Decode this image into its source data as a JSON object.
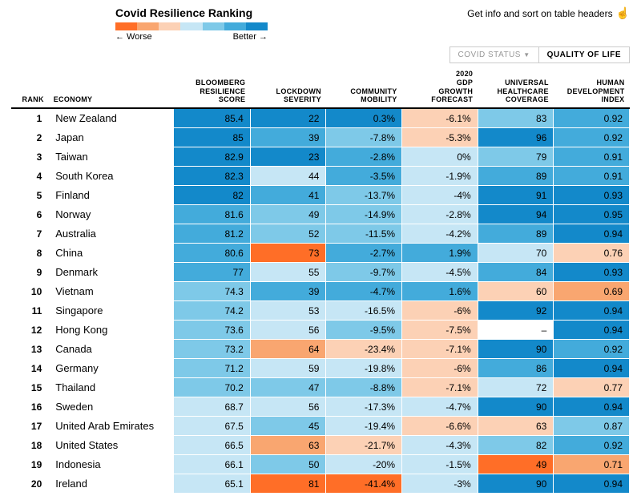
{
  "legend": {
    "title": "Covid Resilience Ranking",
    "worse": "← Worse",
    "better": "Better →",
    "colors": [
      "#ff6e27",
      "#f9a670",
      "#fcd1b5",
      "#c6e6f5",
      "#7ec9e8",
      "#43abdb",
      "#1389ca"
    ]
  },
  "infoText": "Get info and sort on table headers",
  "tabs": {
    "covid": "COVID STATUS",
    "quality": "QUALITY OF LIFE"
  },
  "columns": [
    {
      "key": "rank",
      "label": "RANK",
      "cls": "rank"
    },
    {
      "key": "economy",
      "label": "ECONOMY",
      "cls": "economy"
    },
    {
      "key": "score",
      "label": "BLOOMBERG RESILIENCE SCORE",
      "cls": "score"
    },
    {
      "key": "lockdown",
      "label": "LOCKDOWN SEVERITY",
      "cls": "metric"
    },
    {
      "key": "mobility",
      "label": "COMMUNITY MOBILITY",
      "cls": "metric"
    },
    {
      "key": "gdp",
      "label": "2020 GDP GROWTH FORECAST",
      "cls": "metric"
    },
    {
      "key": "health",
      "label": "UNIVERSAL HEALTHCARE COVERAGE",
      "cls": "metric"
    },
    {
      "key": "hdi",
      "label": "HUMAN DEVELOPMENT INDEX",
      "cls": "metric"
    }
  ],
  "rows": [
    {
      "rank": "1",
      "economy": "New Zealand",
      "score": {
        "v": "85.4",
        "c": "#1389ca"
      },
      "lockdown": {
        "v": "22",
        "c": "#1389ca"
      },
      "mobility": {
        "v": "0.3%",
        "c": "#1389ca"
      },
      "gdp": {
        "v": "-6.1%",
        "c": "#fcd1b5"
      },
      "health": {
        "v": "83",
        "c": "#7ec9e8"
      },
      "hdi": {
        "v": "0.92",
        "c": "#43abdb"
      }
    },
    {
      "rank": "2",
      "economy": "Japan",
      "score": {
        "v": "85",
        "c": "#1389ca"
      },
      "lockdown": {
        "v": "39",
        "c": "#43abdb"
      },
      "mobility": {
        "v": "-7.8%",
        "c": "#7ec9e8"
      },
      "gdp": {
        "v": "-5.3%",
        "c": "#fcd1b5"
      },
      "health": {
        "v": "96",
        "c": "#1389ca"
      },
      "hdi": {
        "v": "0.92",
        "c": "#43abdb"
      }
    },
    {
      "rank": "3",
      "economy": "Taiwan",
      "score": {
        "v": "82.9",
        "c": "#1389ca"
      },
      "lockdown": {
        "v": "23",
        "c": "#1389ca"
      },
      "mobility": {
        "v": "-2.8%",
        "c": "#43abdb"
      },
      "gdp": {
        "v": "0%",
        "c": "#c6e6f5"
      },
      "health": {
        "v": "79",
        "c": "#7ec9e8"
      },
      "hdi": {
        "v": "0.91",
        "c": "#43abdb"
      }
    },
    {
      "rank": "4",
      "economy": "South Korea",
      "score": {
        "v": "82.3",
        "c": "#1389ca"
      },
      "lockdown": {
        "v": "44",
        "c": "#c6e6f5"
      },
      "mobility": {
        "v": "-3.5%",
        "c": "#43abdb"
      },
      "gdp": {
        "v": "-1.9%",
        "c": "#c6e6f5"
      },
      "health": {
        "v": "89",
        "c": "#43abdb"
      },
      "hdi": {
        "v": "0.91",
        "c": "#43abdb"
      }
    },
    {
      "rank": "5",
      "economy": "Finland",
      "score": {
        "v": "82",
        "c": "#1389ca"
      },
      "lockdown": {
        "v": "41",
        "c": "#43abdb"
      },
      "mobility": {
        "v": "-13.7%",
        "c": "#7ec9e8"
      },
      "gdp": {
        "v": "-4%",
        "c": "#c6e6f5"
      },
      "health": {
        "v": "91",
        "c": "#1389ca"
      },
      "hdi": {
        "v": "0.93",
        "c": "#1389ca"
      }
    },
    {
      "rank": "6",
      "economy": "Norway",
      "score": {
        "v": "81.6",
        "c": "#43abdb"
      },
      "lockdown": {
        "v": "49",
        "c": "#7ec9e8"
      },
      "mobility": {
        "v": "-14.9%",
        "c": "#7ec9e8"
      },
      "gdp": {
        "v": "-2.8%",
        "c": "#c6e6f5"
      },
      "health": {
        "v": "94",
        "c": "#1389ca"
      },
      "hdi": {
        "v": "0.95",
        "c": "#1389ca"
      }
    },
    {
      "rank": "7",
      "economy": "Australia",
      "score": {
        "v": "81.2",
        "c": "#43abdb"
      },
      "lockdown": {
        "v": "52",
        "c": "#7ec9e8"
      },
      "mobility": {
        "v": "-11.5%",
        "c": "#7ec9e8"
      },
      "gdp": {
        "v": "-4.2%",
        "c": "#c6e6f5"
      },
      "health": {
        "v": "89",
        "c": "#43abdb"
      },
      "hdi": {
        "v": "0.94",
        "c": "#1389ca"
      }
    },
    {
      "rank": "8",
      "economy": "China",
      "score": {
        "v": "80.6",
        "c": "#43abdb"
      },
      "lockdown": {
        "v": "73",
        "c": "#ff6e27"
      },
      "mobility": {
        "v": "-2.7%",
        "c": "#43abdb"
      },
      "gdp": {
        "v": "1.9%",
        "c": "#43abdb"
      },
      "health": {
        "v": "70",
        "c": "#c6e6f5"
      },
      "hdi": {
        "v": "0.76",
        "c": "#fcd1b5"
      }
    },
    {
      "rank": "9",
      "economy": "Denmark",
      "score": {
        "v": "77",
        "c": "#43abdb"
      },
      "lockdown": {
        "v": "55",
        "c": "#c6e6f5"
      },
      "mobility": {
        "v": "-9.7%",
        "c": "#7ec9e8"
      },
      "gdp": {
        "v": "-4.5%",
        "c": "#c6e6f5"
      },
      "health": {
        "v": "84",
        "c": "#43abdb"
      },
      "hdi": {
        "v": "0.93",
        "c": "#1389ca"
      }
    },
    {
      "rank": "10",
      "economy": "Vietnam",
      "score": {
        "v": "74.3",
        "c": "#7ec9e8"
      },
      "lockdown": {
        "v": "39",
        "c": "#43abdb"
      },
      "mobility": {
        "v": "-4.7%",
        "c": "#43abdb"
      },
      "gdp": {
        "v": "1.6%",
        "c": "#43abdb"
      },
      "health": {
        "v": "60",
        "c": "#fcd1b5"
      },
      "hdi": {
        "v": "0.69",
        "c": "#f9a670"
      }
    },
    {
      "rank": "11",
      "economy": "Singapore",
      "score": {
        "v": "74.2",
        "c": "#7ec9e8"
      },
      "lockdown": {
        "v": "53",
        "c": "#c6e6f5"
      },
      "mobility": {
        "v": "-16.5%",
        "c": "#c6e6f5"
      },
      "gdp": {
        "v": "-6%",
        "c": "#fcd1b5"
      },
      "health": {
        "v": "92",
        "c": "#1389ca"
      },
      "hdi": {
        "v": "0.94",
        "c": "#1389ca"
      }
    },
    {
      "rank": "12",
      "economy": "Hong Kong",
      "score": {
        "v": "73.6",
        "c": "#7ec9e8"
      },
      "lockdown": {
        "v": "56",
        "c": "#c6e6f5"
      },
      "mobility": {
        "v": "-9.5%",
        "c": "#7ec9e8"
      },
      "gdp": {
        "v": "-7.5%",
        "c": "#fcd1b5"
      },
      "health": {
        "v": "–",
        "c": "#ffffff"
      },
      "hdi": {
        "v": "0.94",
        "c": "#1389ca"
      }
    },
    {
      "rank": "13",
      "economy": "Canada",
      "score": {
        "v": "73.2",
        "c": "#7ec9e8"
      },
      "lockdown": {
        "v": "64",
        "c": "#f9a670"
      },
      "mobility": {
        "v": "-23.4%",
        "c": "#fcd1b5"
      },
      "gdp": {
        "v": "-7.1%",
        "c": "#fcd1b5"
      },
      "health": {
        "v": "90",
        "c": "#1389ca"
      },
      "hdi": {
        "v": "0.92",
        "c": "#43abdb"
      }
    },
    {
      "rank": "14",
      "economy": "Germany",
      "score": {
        "v": "71.2",
        "c": "#7ec9e8"
      },
      "lockdown": {
        "v": "59",
        "c": "#c6e6f5"
      },
      "mobility": {
        "v": "-19.8%",
        "c": "#c6e6f5"
      },
      "gdp": {
        "v": "-6%",
        "c": "#fcd1b5"
      },
      "health": {
        "v": "86",
        "c": "#43abdb"
      },
      "hdi": {
        "v": "0.94",
        "c": "#1389ca"
      }
    },
    {
      "rank": "15",
      "economy": "Thailand",
      "score": {
        "v": "70.2",
        "c": "#7ec9e8"
      },
      "lockdown": {
        "v": "47",
        "c": "#7ec9e8"
      },
      "mobility": {
        "v": "-8.8%",
        "c": "#7ec9e8"
      },
      "gdp": {
        "v": "-7.1%",
        "c": "#fcd1b5"
      },
      "health": {
        "v": "72",
        "c": "#c6e6f5"
      },
      "hdi": {
        "v": "0.77",
        "c": "#fcd1b5"
      }
    },
    {
      "rank": "16",
      "economy": "Sweden",
      "score": {
        "v": "68.7",
        "c": "#c6e6f5"
      },
      "lockdown": {
        "v": "56",
        "c": "#c6e6f5"
      },
      "mobility": {
        "v": "-17.3%",
        "c": "#c6e6f5"
      },
      "gdp": {
        "v": "-4.7%",
        "c": "#c6e6f5"
      },
      "health": {
        "v": "90",
        "c": "#1389ca"
      },
      "hdi": {
        "v": "0.94",
        "c": "#1389ca"
      }
    },
    {
      "rank": "17",
      "economy": "United Arab Emirates",
      "score": {
        "v": "67.5",
        "c": "#c6e6f5"
      },
      "lockdown": {
        "v": "45",
        "c": "#7ec9e8"
      },
      "mobility": {
        "v": "-19.4%",
        "c": "#c6e6f5"
      },
      "gdp": {
        "v": "-6.6%",
        "c": "#fcd1b5"
      },
      "health": {
        "v": "63",
        "c": "#fcd1b5"
      },
      "hdi": {
        "v": "0.87",
        "c": "#7ec9e8"
      }
    },
    {
      "rank": "18",
      "economy": "United States",
      "score": {
        "v": "66.5",
        "c": "#c6e6f5"
      },
      "lockdown": {
        "v": "63",
        "c": "#f9a670"
      },
      "mobility": {
        "v": "-21.7%",
        "c": "#fcd1b5"
      },
      "gdp": {
        "v": "-4.3%",
        "c": "#c6e6f5"
      },
      "health": {
        "v": "82",
        "c": "#7ec9e8"
      },
      "hdi": {
        "v": "0.92",
        "c": "#43abdb"
      }
    },
    {
      "rank": "19",
      "economy": "Indonesia",
      "score": {
        "v": "66.1",
        "c": "#c6e6f5"
      },
      "lockdown": {
        "v": "50",
        "c": "#7ec9e8"
      },
      "mobility": {
        "v": "-20%",
        "c": "#c6e6f5"
      },
      "gdp": {
        "v": "-1.5%",
        "c": "#c6e6f5"
      },
      "health": {
        "v": "49",
        "c": "#ff6e27"
      },
      "hdi": {
        "v": "0.71",
        "c": "#f9a670"
      }
    },
    {
      "rank": "20",
      "economy": "Ireland",
      "score": {
        "v": "65.1",
        "c": "#c6e6f5"
      },
      "lockdown": {
        "v": "81",
        "c": "#ff6e27"
      },
      "mobility": {
        "v": "-41.4%",
        "c": "#ff6e27"
      },
      "gdp": {
        "v": "-3%",
        "c": "#c6e6f5"
      },
      "health": {
        "v": "90",
        "c": "#1389ca"
      },
      "hdi": {
        "v": "0.94",
        "c": "#1389ca"
      }
    }
  ]
}
